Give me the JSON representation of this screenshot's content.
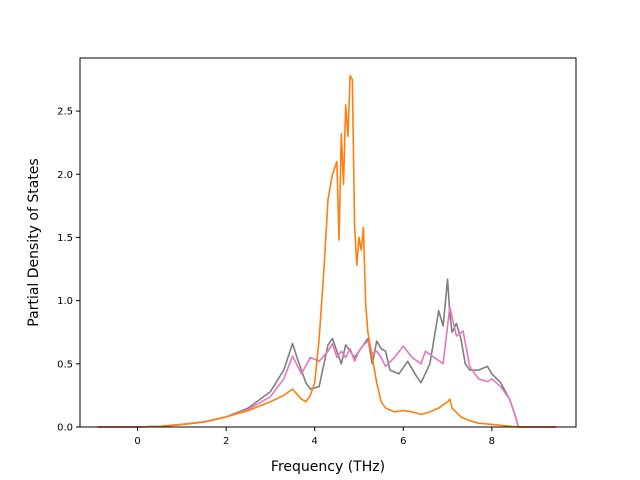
{
  "chart_data": {
    "type": "line",
    "title": "",
    "xlabel": "Frequency (THz)",
    "ylabel": "Partial Density of States",
    "xlim": [
      -1.3,
      9.9
    ],
    "ylim": [
      0.0,
      2.92
    ],
    "xticks": [
      0,
      2,
      4,
      6,
      8
    ],
    "xtick_labels": [
      "0",
      "2",
      "4",
      "6",
      "8"
    ],
    "yticks": [
      0.0,
      0.5,
      1.0,
      1.5,
      2.0,
      2.5
    ],
    "ytick_labels": [
      "0.0",
      "0.5",
      "1.0",
      "1.5",
      "2.0",
      "2.5"
    ],
    "grid": false,
    "legend": "none",
    "series": [
      {
        "color": "#7f7f7f",
        "x": [
          -0.9,
          -0.5,
          0.0,
          0.5,
          1.0,
          1.5,
          2.0,
          2.5,
          3.0,
          3.3,
          3.5,
          3.6,
          3.8,
          3.9,
          4.1,
          4.3,
          4.4,
          4.5,
          4.6,
          4.7,
          4.8,
          4.9,
          5.0,
          5.1,
          5.2,
          5.3,
          5.4,
          5.5,
          5.6,
          5.7,
          5.9,
          6.1,
          6.3,
          6.4,
          6.6,
          6.8,
          6.9,
          7.0,
          7.05,
          7.1,
          7.2,
          7.3,
          7.4,
          7.5,
          7.7,
          7.9,
          8.0,
          8.2,
          8.4,
          8.5,
          8.6,
          9.0,
          9.45
        ],
        "y": [
          0.0,
          0.0,
          0.0,
          0.005,
          0.02,
          0.04,
          0.08,
          0.15,
          0.28,
          0.45,
          0.66,
          0.55,
          0.35,
          0.3,
          0.32,
          0.65,
          0.7,
          0.6,
          0.5,
          0.65,
          0.6,
          0.55,
          0.6,
          0.65,
          0.7,
          0.5,
          0.68,
          0.62,
          0.6,
          0.45,
          0.42,
          0.52,
          0.4,
          0.35,
          0.5,
          0.92,
          0.8,
          1.17,
          0.9,
          0.75,
          0.82,
          0.7,
          0.5,
          0.45,
          0.45,
          0.48,
          0.42,
          0.35,
          0.22,
          0.12,
          0.0,
          0.0,
          0.0
        ]
      },
      {
        "color": "#e377c2",
        "x": [
          -0.9,
          -0.5,
          0.0,
          0.5,
          1.0,
          1.5,
          2.0,
          2.5,
          3.0,
          3.3,
          3.5,
          3.7,
          3.9,
          4.1,
          4.3,
          4.4,
          4.5,
          4.6,
          4.7,
          4.8,
          4.9,
          5.0,
          5.1,
          5.2,
          5.3,
          5.4,
          5.5,
          5.6,
          5.8,
          6.0,
          6.2,
          6.4,
          6.5,
          6.7,
          6.9,
          7.05,
          7.2,
          7.35,
          7.5,
          7.7,
          7.9,
          8.0,
          8.2,
          8.4,
          8.5,
          8.6,
          9.0,
          9.45
        ],
        "y": [
          0.0,
          0.0,
          0.0,
          0.005,
          0.02,
          0.04,
          0.08,
          0.14,
          0.24,
          0.38,
          0.56,
          0.42,
          0.55,
          0.52,
          0.6,
          0.66,
          0.55,
          0.6,
          0.55,
          0.62,
          0.52,
          0.6,
          0.65,
          0.68,
          0.58,
          0.6,
          0.55,
          0.48,
          0.55,
          0.64,
          0.55,
          0.5,
          0.6,
          0.55,
          0.5,
          0.95,
          0.72,
          0.76,
          0.48,
          0.38,
          0.36,
          0.38,
          0.32,
          0.22,
          0.12,
          0.0,
          0.0,
          0.0
        ]
      },
      {
        "color": "#ff7f0e",
        "x": [
          -0.9,
          -0.5,
          0.0,
          0.5,
          1.0,
          1.5,
          2.0,
          2.5,
          3.0,
          3.3,
          3.5,
          3.7,
          3.8,
          3.9,
          4.0,
          4.1,
          4.2,
          4.3,
          4.4,
          4.5,
          4.55,
          4.6,
          4.65,
          4.7,
          4.75,
          4.8,
          4.85,
          4.9,
          4.95,
          5.0,
          5.05,
          5.1,
          5.15,
          5.2,
          5.3,
          5.4,
          5.5,
          5.6,
          5.8,
          6.0,
          6.2,
          6.4,
          6.6,
          6.8,
          7.0,
          7.05,
          7.1,
          7.3,
          7.5,
          7.7,
          8.0,
          8.3,
          8.6,
          9.0,
          9.45
        ],
        "y": [
          0.0,
          0.0,
          0.0,
          0.005,
          0.02,
          0.04,
          0.08,
          0.13,
          0.2,
          0.25,
          0.3,
          0.22,
          0.2,
          0.25,
          0.35,
          0.7,
          1.2,
          1.8,
          2.0,
          2.1,
          1.48,
          2.32,
          1.92,
          2.55,
          2.3,
          2.78,
          2.75,
          1.6,
          1.28,
          1.5,
          1.4,
          1.58,
          0.98,
          0.75,
          0.55,
          0.35,
          0.2,
          0.15,
          0.12,
          0.13,
          0.12,
          0.1,
          0.12,
          0.15,
          0.2,
          0.22,
          0.15,
          0.08,
          0.05,
          0.03,
          0.02,
          0.01,
          0.0,
          0.0,
          0.0
        ]
      }
    ]
  }
}
